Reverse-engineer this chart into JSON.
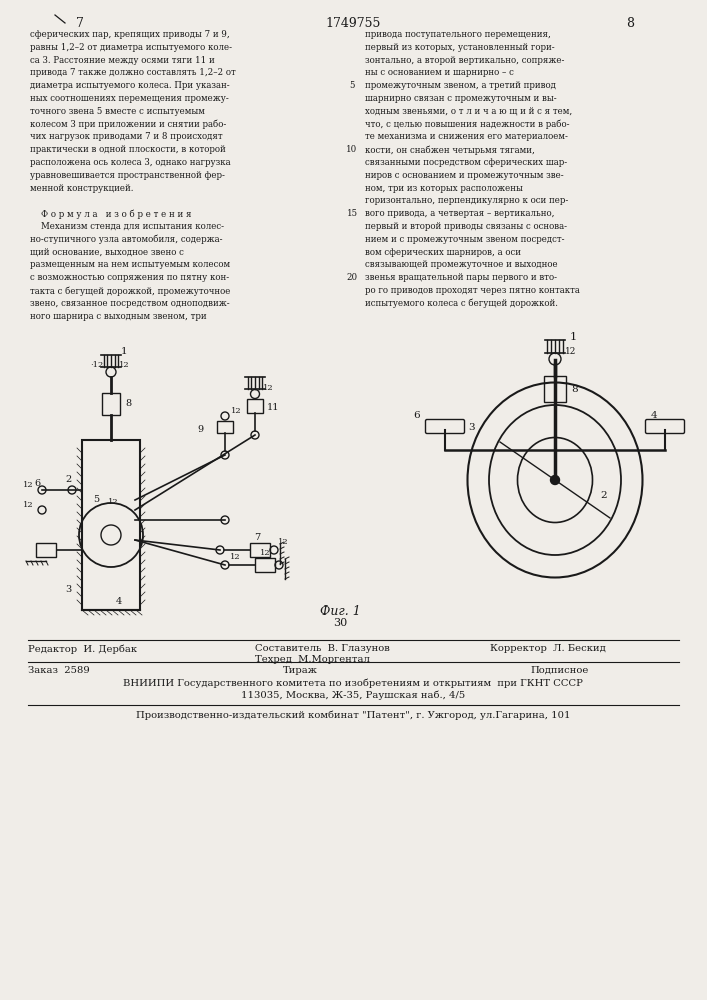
{
  "page_number_left": "7",
  "patent_number": "1749755",
  "page_number_right": "8",
  "bg_color": "#f0ede8",
  "text_color": "#1a1a1a",
  "left_column_text": [
    "сферических пар, крепящих приводы 7 и 9,",
    "равны 1,2–2 от диаметра испытуемого коле-",
    "са 3. Расстояние между осями тяги 11 и",
    "привода 7 также должно составлять 1,2–2 от",
    "диаметра испытуемого колеса. При указан-",
    "ных соотношениях перемещения промежу-",
    "точного звена 5 вместе с испытуемым",
    "колесом 3 при приложении и снятии рабо-",
    "чих нагрузок приводами 7 и 8 происходят",
    "практически в одной плоскости, в которой",
    "расположена ось колеса 3, однако нагрузка",
    "уравновешивается пространственной фер-",
    "менной конструкцией.",
    "",
    "    Ф о р м у л а   и з о б р е т е н и я",
    "    Механизм стенда для испытания колес-",
    "но-ступичного узла автомобиля, содержа-",
    "щий основание, выходное звено с",
    "размещенным на нем испытуемым колесом",
    "с возможностью сопряжения по пятну кон-",
    "такта с бегущей дорожкой, промежуточное",
    "звено, связанное посредством одноподвиж-",
    "ного шарнира с выходным звеном, три"
  ],
  "right_column_text": [
    "привода поступательного перемещения,",
    "первый из которых, установленный гори-",
    "зонтально, а второй вертикально, сопряже-",
    "ны с основанием и шарнирно – с",
    "промежуточным звеном, а третий привод",
    "шарнирно связан с промежуточным и вы-",
    "ходным звеньями, о т л и ч а ю щ и й с я тем,",
    "что, с целью повышения надежности в рабо-",
    "те механизма и снижения его материалоем-",
    "кости, он снабжен четырьмя тягами,",
    "связанными посредством сферических шар-",
    "ниров с основанием и промежуточным зве-",
    "ном, три из которых расположены",
    "горизонтально, перпендикулярно к оси пер-",
    "вого привода, а четвертая – вертикально,",
    "первый и второй приводы связаны с основа-",
    "нием и с промежуточным звеном посредст-",
    "вом сферических шарниров, а оси",
    "связывающей промежуточное и выходное",
    "звенья вращательной пары первого и вто-",
    "ро го приводов проходят через пятно контакта",
    "испытуемого колеса с бегущей дорожкой."
  ],
  "line_numbers": [
    "5",
    "10",
    "15",
    "20"
  ],
  "fig_caption": "Фиг. 1",
  "fig_number": "30",
  "editor_label": "Редактор  И. Дербак",
  "composer_label": "Составитель  В. Глазунов",
  "techred_label": "Техред  М.Моргентал",
  "corrector_label": "Корректор  Л. Бескид",
  "order_label": "Заказ  2589",
  "tirazh_label": "Тираж",
  "podpisnoe_label": "Подписное",
  "vniiipi_line1": "ВНИИПИ Государственного комитета по изобретениям и открытиям  при ГКНТ СССР",
  "vniiipi_line2": "113035, Москва, Ж-35, Раушская наб., 4/5",
  "factory_line": "Производственно-издательский комбинат \"Патент\", г. Ужгород, ул.Гагарина, 101"
}
